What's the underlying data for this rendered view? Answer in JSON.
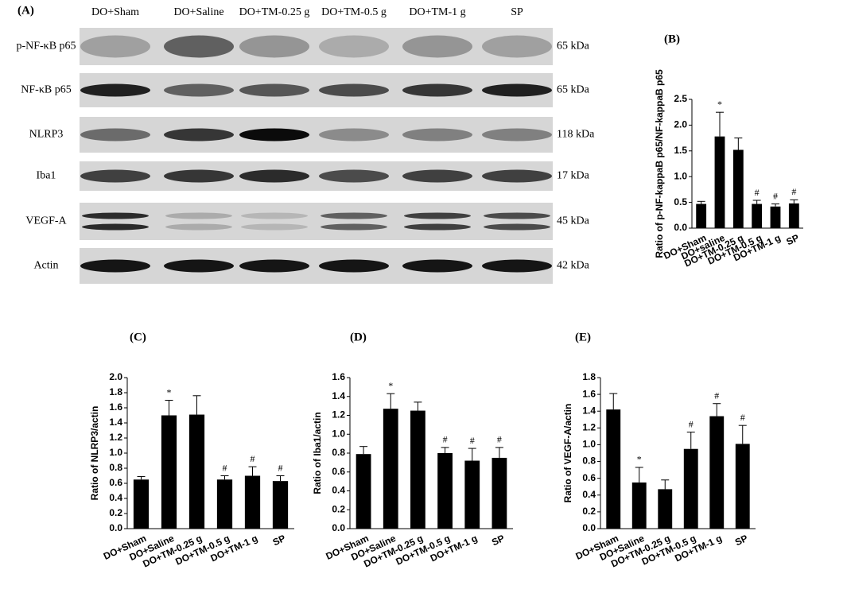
{
  "blot": {
    "label": "(A)",
    "lanes": [
      "DO+Sham",
      "DO+Saline",
      "DO+TM-0.25 g",
      "DO+TM-0.5 g",
      "DO+TM-1 g",
      "SP"
    ],
    "proteins": [
      {
        "name": "p-NF-κB p65",
        "size": "65 kDa"
      },
      {
        "name": "NF-κB p65",
        "size": "65 kDa"
      },
      {
        "name": "NLRP3",
        "size": "118 kDa"
      },
      {
        "name": "Iba1",
        "size": "17 kDa"
      },
      {
        "name": "VEGF-A",
        "size": "45 kDa"
      },
      {
        "name": "Actin",
        "size": "42 kDa"
      }
    ]
  },
  "chart_data": [
    {
      "type": "bar",
      "title": "(B)",
      "y_label": "Ratio of p-NF-kappaB p65/NF-kappaB p65",
      "categories": [
        "DO+Sham",
        "DO+saline",
        "DO+TM-0.25 g",
        "DO+TM-0.5 g",
        "DO+TM-1 g",
        "SP"
      ],
      "values": [
        0.47,
        1.78,
        1.52,
        0.47,
        0.42,
        0.48
      ],
      "errors": [
        0.05,
        0.47,
        0.23,
        0.07,
        0.05,
        0.07
      ],
      "marks": [
        null,
        "*",
        null,
        "#",
        "#",
        "#"
      ],
      "color": "#000000",
      "ylim": [
        0,
        2.5
      ],
      "yticks": [
        {
          "value": 0,
          "label": "0.0"
        },
        0.5,
        {
          "value": 1,
          "label": "1.0"
        },
        1.5,
        {
          "value": 2,
          "label": "2.0"
        },
        2.5
      ]
    },
    {
      "type": "bar",
      "title": "(C)",
      "y_label": "Ratio of NLRP3/actin",
      "categories": [
        "DO+Sham",
        "DO+Saline",
        "DO+TM-0.25 g",
        "DO+TM-0.5 g",
        "DO+TM-1 g",
        "SP"
      ],
      "values": [
        0.65,
        1.5,
        1.51,
        0.65,
        0.7,
        0.63
      ],
      "errors": [
        0.04,
        0.2,
        0.25,
        0.05,
        0.12,
        0.07
      ],
      "marks": [
        null,
        "*",
        null,
        "#",
        "#",
        "#"
      ],
      "color": "#000000",
      "ylim": [
        0,
        2
      ],
      "yticks": [
        {
          "value": 0,
          "label": "0.0"
        },
        0.2,
        0.4,
        0.6,
        0.8,
        {
          "value": 1,
          "label": "1.0"
        },
        1.2,
        1.4,
        1.6,
        1.8,
        {
          "value": 2,
          "label": "2.0"
        }
      ]
    },
    {
      "type": "bar",
      "title": "(D)",
      "y_label": "Ratio of Iba1/actin",
      "categories": [
        "DO+Sham",
        "DO+Saline",
        "DO+TM-0.25 g",
        "DO+TM-0.5 g",
        "DO+TM-1 g",
        "SP"
      ],
      "values": [
        0.79,
        1.27,
        1.25,
        0.8,
        0.72,
        0.75
      ],
      "errors": [
        0.08,
        0.16,
        0.09,
        0.06,
        0.13,
        0.11
      ],
      "marks": [
        null,
        "*",
        null,
        "#",
        "#",
        "#"
      ],
      "color": "#000000",
      "ylim": [
        0,
        1.6
      ],
      "yticks": [
        {
          "value": 0,
          "label": "0.0"
        },
        0.2,
        0.4,
        0.6,
        0.8,
        {
          "value": 1,
          "label": "1.0"
        },
        1.2,
        1.4,
        1.6
      ]
    },
    {
      "type": "bar",
      "title": "(E)",
      "y_label": "Ratio of VEGF-A/actin",
      "categories": [
        "DO+Sham",
        "DO+Saline",
        "DO+TM-0.25 g",
        "DO+TM-0.5 g",
        "DO+TM-1 g",
        "SP"
      ],
      "values": [
        1.42,
        0.55,
        0.47,
        0.95,
        1.34,
        1.01
      ],
      "errors": [
        0.19,
        0.18,
        0.11,
        0.2,
        0.15,
        0.22
      ],
      "marks": [
        null,
        "*",
        null,
        "#",
        "#",
        "#"
      ],
      "color": "#000000",
      "ylim": [
        0,
        1.8
      ],
      "yticks": [
        {
          "value": 0,
          "label": "0.0"
        },
        0.2,
        0.4,
        0.6,
        0.8,
        {
          "value": 1,
          "label": "1.0"
        },
        1.2,
        1.4,
        1.6,
        1.8
      ]
    }
  ]
}
